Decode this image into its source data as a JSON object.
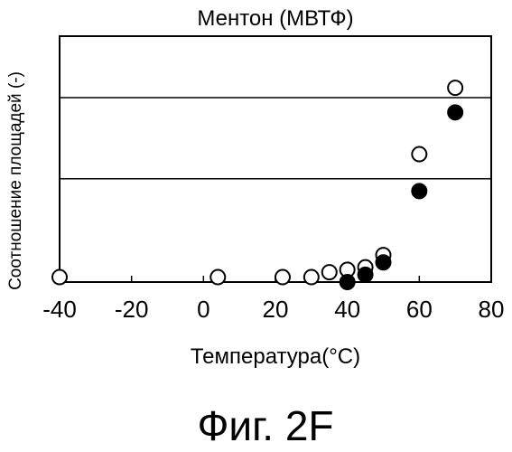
{
  "figure_caption": "Фиг. 2F",
  "chart_data": {
    "type": "scatter",
    "title": "Ментон (МВТФ)",
    "xlabel": "Температура(°C)",
    "ylabel": "Соотношение площадей (-)",
    "xlim": [
      -40,
      80
    ],
    "ylim": [
      0,
      1
    ],
    "x_ticks": [
      "-40",
      "-20",
      "0",
      "20",
      "40",
      "60",
      "80"
    ],
    "y_ticks": [],
    "grid": "two horizontal reference lines",
    "reference_lines_y": [
      0.42,
      0.75
    ],
    "legend": "none",
    "series": [
      {
        "marker": "open-circle",
        "color": "#000000",
        "points": [
          {
            "x": -40,
            "y": 0.02
          },
          {
            "x": 4,
            "y": 0.02
          },
          {
            "x": 22,
            "y": 0.02
          },
          {
            "x": 30,
            "y": 0.02
          },
          {
            "x": 35,
            "y": 0.04
          },
          {
            "x": 40,
            "y": 0.05
          },
          {
            "x": 45,
            "y": 0.06
          },
          {
            "x": 50,
            "y": 0.11
          },
          {
            "x": 60,
            "y": 0.52
          },
          {
            "x": 70,
            "y": 0.79
          }
        ]
      },
      {
        "marker": "filled-circle",
        "color": "#000000",
        "points": [
          {
            "x": 40,
            "y": 0.0
          },
          {
            "x": 45,
            "y": 0.03
          },
          {
            "x": 50,
            "y": 0.08
          },
          {
            "x": 60,
            "y": 0.37
          },
          {
            "x": 70,
            "y": 0.69
          }
        ]
      }
    ]
  }
}
